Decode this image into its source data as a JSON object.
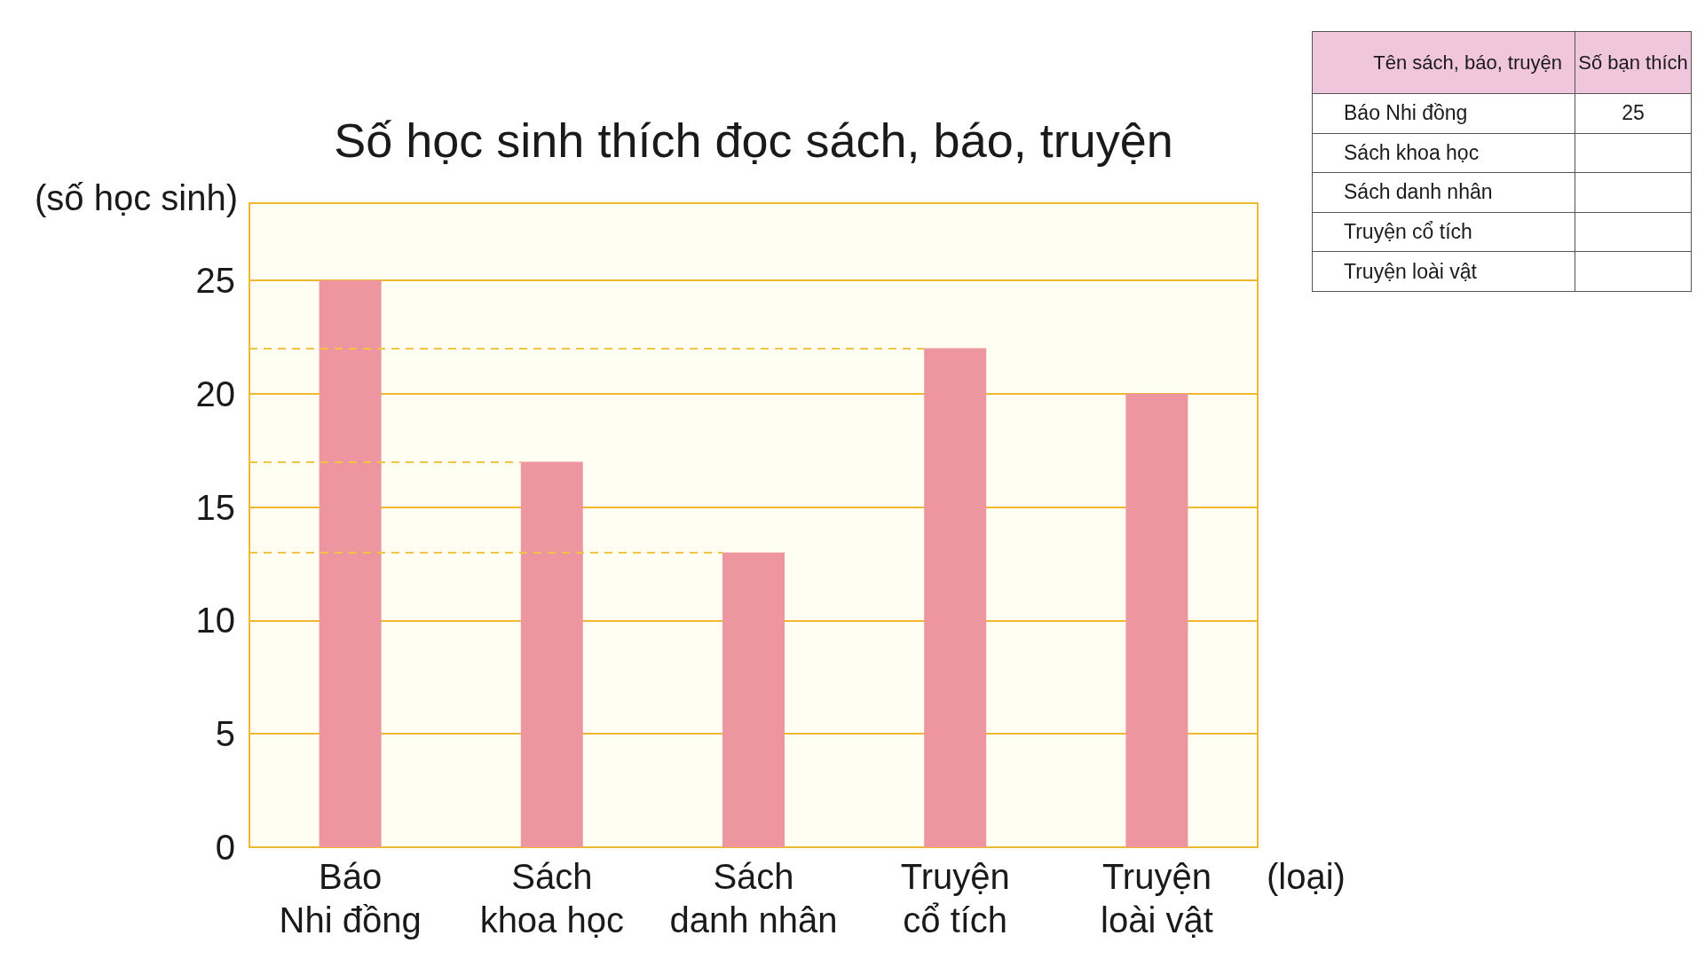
{
  "chart_data": [
    {
      "type": "bar",
      "title": "Số học sinh thích đọc sách, báo, truyện",
      "ylabel": "(số học sinh)",
      "xlabel": "(loại)",
      "categories": [
        "Báo Nhi đồng",
        "Sách khoa học",
        "Sách danh nhân",
        "Truyện cổ tích",
        "Truyện loài vật"
      ],
      "values": [
        25,
        17,
        13,
        22,
        20
      ],
      "color": "#ee969f",
      "ylim": [
        0,
        28.4
      ],
      "yticks": [
        0,
        5,
        10,
        15,
        20,
        25
      ],
      "grid": "y",
      "ref_lines": [
        {
          "axis": "y",
          "value": 22,
          "color": "#f2c340",
          "line_style": "dashed"
        },
        {
          "axis": "y",
          "value": 17,
          "color": "#f2c340",
          "line_style": "dashed"
        },
        {
          "axis": "y",
          "value": 13,
          "color": "#f2c340",
          "line_style": "dashed"
        }
      ]
    },
    {
      "type": "other",
      "xlabel": "Tên sách, báo, truyện",
      "ylabel": "Số bạn thích",
      "categories": [
        "Báo Nhi đồng",
        "Sách khoa học",
        "Sách danh nhân",
        "Truyện cổ tích",
        "Truyện loài vật"
      ],
      "values": [
        25,
        null,
        null,
        null,
        null
      ],
      "data_labels": true
    }
  ]
}
